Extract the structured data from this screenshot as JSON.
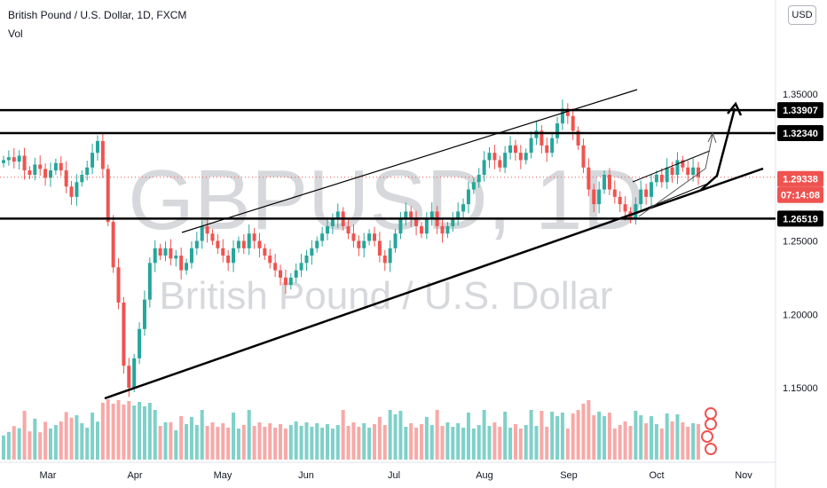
{
  "header": {
    "title": "British Pound / U.S. Dollar, 1D, FXCM",
    "volume_label": "Vol",
    "currency_badge": "USD"
  },
  "watermark": {
    "symbol": "GBPUSD, 1D",
    "name": "British Pound / U.S. Dollar"
  },
  "colors": {
    "up": "#26a69a",
    "down": "#ef5350",
    "up_volume": "#7fd1c9",
    "down_volume": "#f7a9a7",
    "axis_text": "#131722",
    "current_price_bg": "#ef5350"
  },
  "chart_data": {
    "type": "candlestick",
    "symbol": "GBPUSD",
    "timeframe": "1D",
    "source": "FXCM",
    "x_tick_labels": [
      "Mar",
      "Apr",
      "May",
      "Jun",
      "Jul",
      "Aug",
      "Sep",
      "Oct",
      "Nov"
    ],
    "y_tick_labels": [
      "1.15000",
      "1.20000",
      "1.25000",
      "1.35000"
    ],
    "y_range": [
      1.1,
      1.4
    ],
    "price_lines": [
      {
        "label": "1.33907",
        "value": 1.33907
      },
      {
        "label": "1.32340",
        "value": 1.3234
      },
      {
        "label": "1.26519",
        "value": 1.26519
      }
    ],
    "current_price": {
      "label": "1.29338",
      "value": 1.29338,
      "countdown": "07:14:08"
    },
    "series": [
      {
        "name": "OHLC",
        "closes": [
          1.305,
          1.307,
          1.304,
          1.308,
          1.298,
          1.295,
          1.302,
          1.299,
          1.293,
          1.298,
          1.303,
          1.298,
          1.287,
          1.28,
          1.29,
          1.295,
          1.3,
          1.31,
          1.318,
          1.299,
          1.263,
          1.232,
          1.208,
          1.165,
          1.15,
          1.17,
          1.19,
          1.21,
          1.235,
          1.245,
          1.24,
          1.245,
          1.238,
          1.24,
          1.23,
          1.235,
          1.245,
          1.25,
          1.26,
          1.255,
          1.25,
          1.245,
          1.24,
          1.235,
          1.245,
          1.25,
          1.245,
          1.255,
          1.25,
          1.245,
          1.24,
          1.235,
          1.23,
          1.225,
          1.22,
          1.225,
          1.23,
          1.235,
          1.24,
          1.245,
          1.25,
          1.255,
          1.26,
          1.265,
          1.27,
          1.26,
          1.255,
          1.25,
          1.245,
          1.25,
          1.255,
          1.25,
          1.24,
          1.235,
          1.245,
          1.255,
          1.265,
          1.27,
          1.265,
          1.26,
          1.255,
          1.265,
          1.27,
          1.26,
          1.255,
          1.26,
          1.265,
          1.27,
          1.275,
          1.285,
          1.29,
          1.295,
          1.305,
          1.31,
          1.305,
          1.3,
          1.31,
          1.315,
          1.31,
          1.305,
          1.31,
          1.32,
          1.325,
          1.315,
          1.31,
          1.32,
          1.33,
          1.34,
          1.335,
          1.325,
          1.315,
          1.3,
          1.285,
          1.275,
          1.285,
          1.295,
          1.285,
          1.28,
          1.275,
          1.27,
          1.265,
          1.275,
          1.285,
          1.28,
          1.29,
          1.295,
          1.29,
          1.3,
          1.295,
          1.305,
          1.3,
          1.295,
          1.3,
          1.2934
        ]
      }
    ],
    "volume_series": {
      "name": "Vol"
    },
    "annotations": [
      "rising channel upper trendline",
      "rising support trendline",
      "horizontal levels 1.33907, 1.32340, 1.26519",
      "projected up arrow to 1.33907"
    ]
  }
}
